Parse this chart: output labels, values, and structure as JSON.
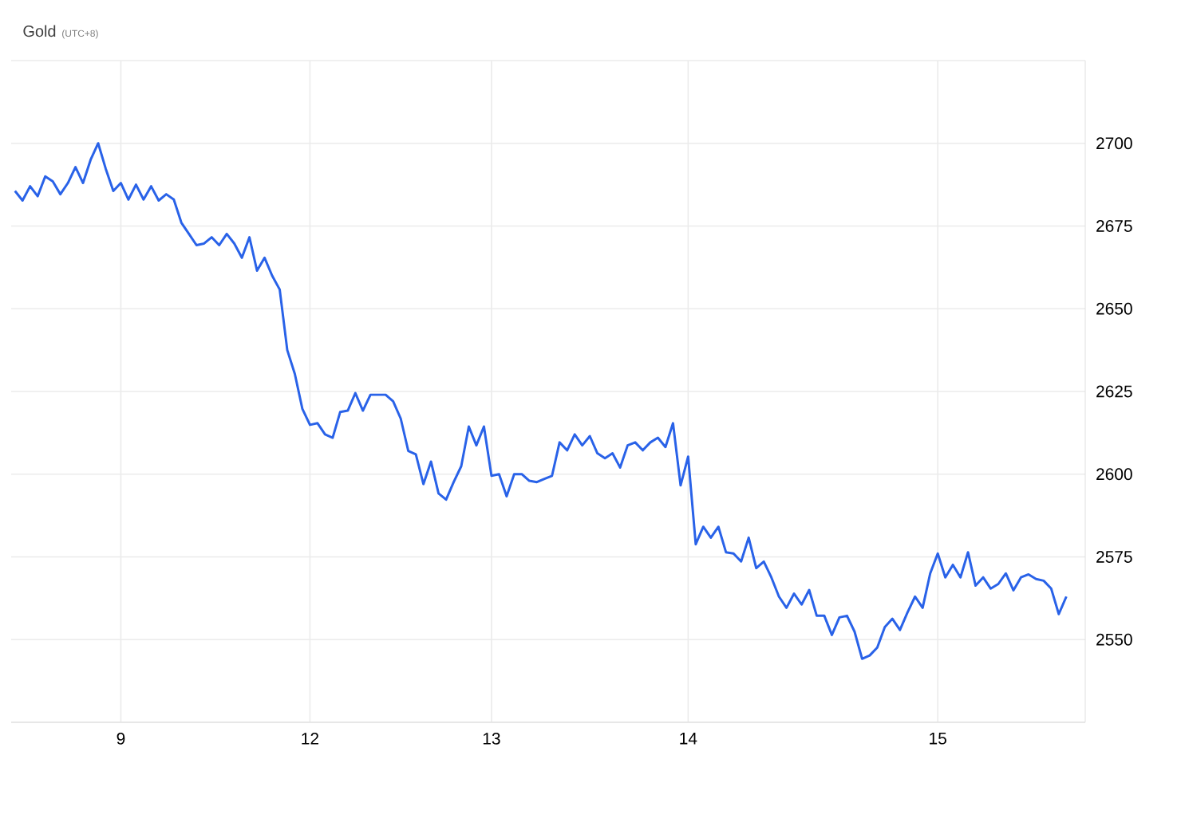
{
  "chart_data": {
    "type": "line",
    "title": "Gold",
    "subtitle": "(UTC+8)",
    "color": "#2962e8",
    "marker": "none",
    "line_style": "solid",
    "grid": true,
    "categories": [
      null,
      null,
      null,
      null,
      null,
      null,
      null,
      null,
      null,
      null,
      null,
      null,
      null,
      null,
      "9",
      null,
      null,
      null,
      null,
      null,
      null,
      null,
      null,
      null,
      null,
      null,
      null,
      null,
      null,
      null,
      null,
      null,
      null,
      null,
      null,
      null,
      null,
      null,
      null,
      "12",
      null,
      null,
      null,
      null,
      null,
      null,
      null,
      null,
      null,
      null,
      null,
      null,
      null,
      null,
      null,
      null,
      null,
      null,
      null,
      null,
      null,
      null,
      null,
      "13",
      null,
      null,
      null,
      null,
      null,
      null,
      null,
      null,
      null,
      null,
      null,
      null,
      null,
      null,
      null,
      null,
      null,
      null,
      null,
      null,
      null,
      null,
      null,
      null,
      null,
      "14",
      null,
      null,
      null,
      null,
      null,
      null,
      null,
      null,
      null,
      null,
      null,
      null,
      null,
      null,
      null,
      null,
      null,
      null,
      null,
      null,
      null,
      null,
      null,
      null,
      null,
      null,
      null,
      null,
      null,
      null,
      null,
      null,
      "15",
      null,
      null,
      null,
      null,
      null,
      null,
      null,
      null,
      null,
      null,
      null,
      null,
      null,
      null,
      null,
      null,
      null
    ],
    "values": [
      2685.6,
      2682.7,
      2687,
      2684,
      2690,
      2688.5,
      2684.6,
      2688,
      2692.8,
      2688,
      2695,
      2700,
      2692.3,
      2685.6,
      2688,
      2683,
      2687.5,
      2683,
      2687,
      2682.7,
      2684.6,
      2683,
      2676,
      2672.6,
      2669.2,
      2669.7,
      2671.6,
      2669.2,
      2672.6,
      2669.7,
      2665.4,
      2671.6,
      2661.5,
      2665.4,
      2660,
      2655.8,
      2637.5,
      2630.3,
      2619.7,
      2614.9,
      2615.4,
      2612,
      2611,
      2618.8,
      2619.2,
      2624.5,
      2619.2,
      2624,
      2624,
      2624,
      2622,
      2616.8,
      2607,
      2606,
      2597,
      2603.8,
      2594.2,
      2592.3,
      2597.6,
      2602.4,
      2614.4,
      2608.7,
      2614.4,
      2599.5,
      2600,
      2593.3,
      2600,
      2600,
      2598,
      2597.6,
      2598.6,
      2599.5,
      2609.6,
      2607.2,
      2612,
      2608.7,
      2611.5,
      2606.3,
      2604.8,
      2606.3,
      2602,
      2608.7,
      2609.6,
      2607.2,
      2609.6,
      2611,
      2608.2,
      2615.4,
      2596.6,
      2605.3,
      2578.8,
      2584.1,
      2580.8,
      2584.1,
      2576.4,
      2576,
      2573.6,
      2580.8,
      2571.6,
      2573.6,
      2568.8,
      2563,
      2559.6,
      2563.9,
      2560.6,
      2565,
      2557.2,
      2557.2,
      2551.4,
      2556.7,
      2557.2,
      2552.4,
      2544.2,
      2545.2,
      2547.6,
      2553.8,
      2556.3,
      2552.9,
      2558.2,
      2563,
      2559.6,
      2570,
      2576,
      2568.8,
      2572.6,
      2568.8,
      2576.4,
      2566.3,
      2568.8,
      2565.4,
      2566.8,
      2570,
      2564.9,
      2568.8,
      2569.7,
      2568.3,
      2567.8,
      2565.4,
      2557.7,
      2563
    ],
    "ylim": [
      2525,
      2725
    ],
    "yticks": [
      {
        "value": 2525,
        "label": null
      },
      2550,
      2575,
      2600,
      2625,
      2650,
      2675,
      2700,
      {
        "value": 2725,
        "label": null
      }
    ]
  }
}
